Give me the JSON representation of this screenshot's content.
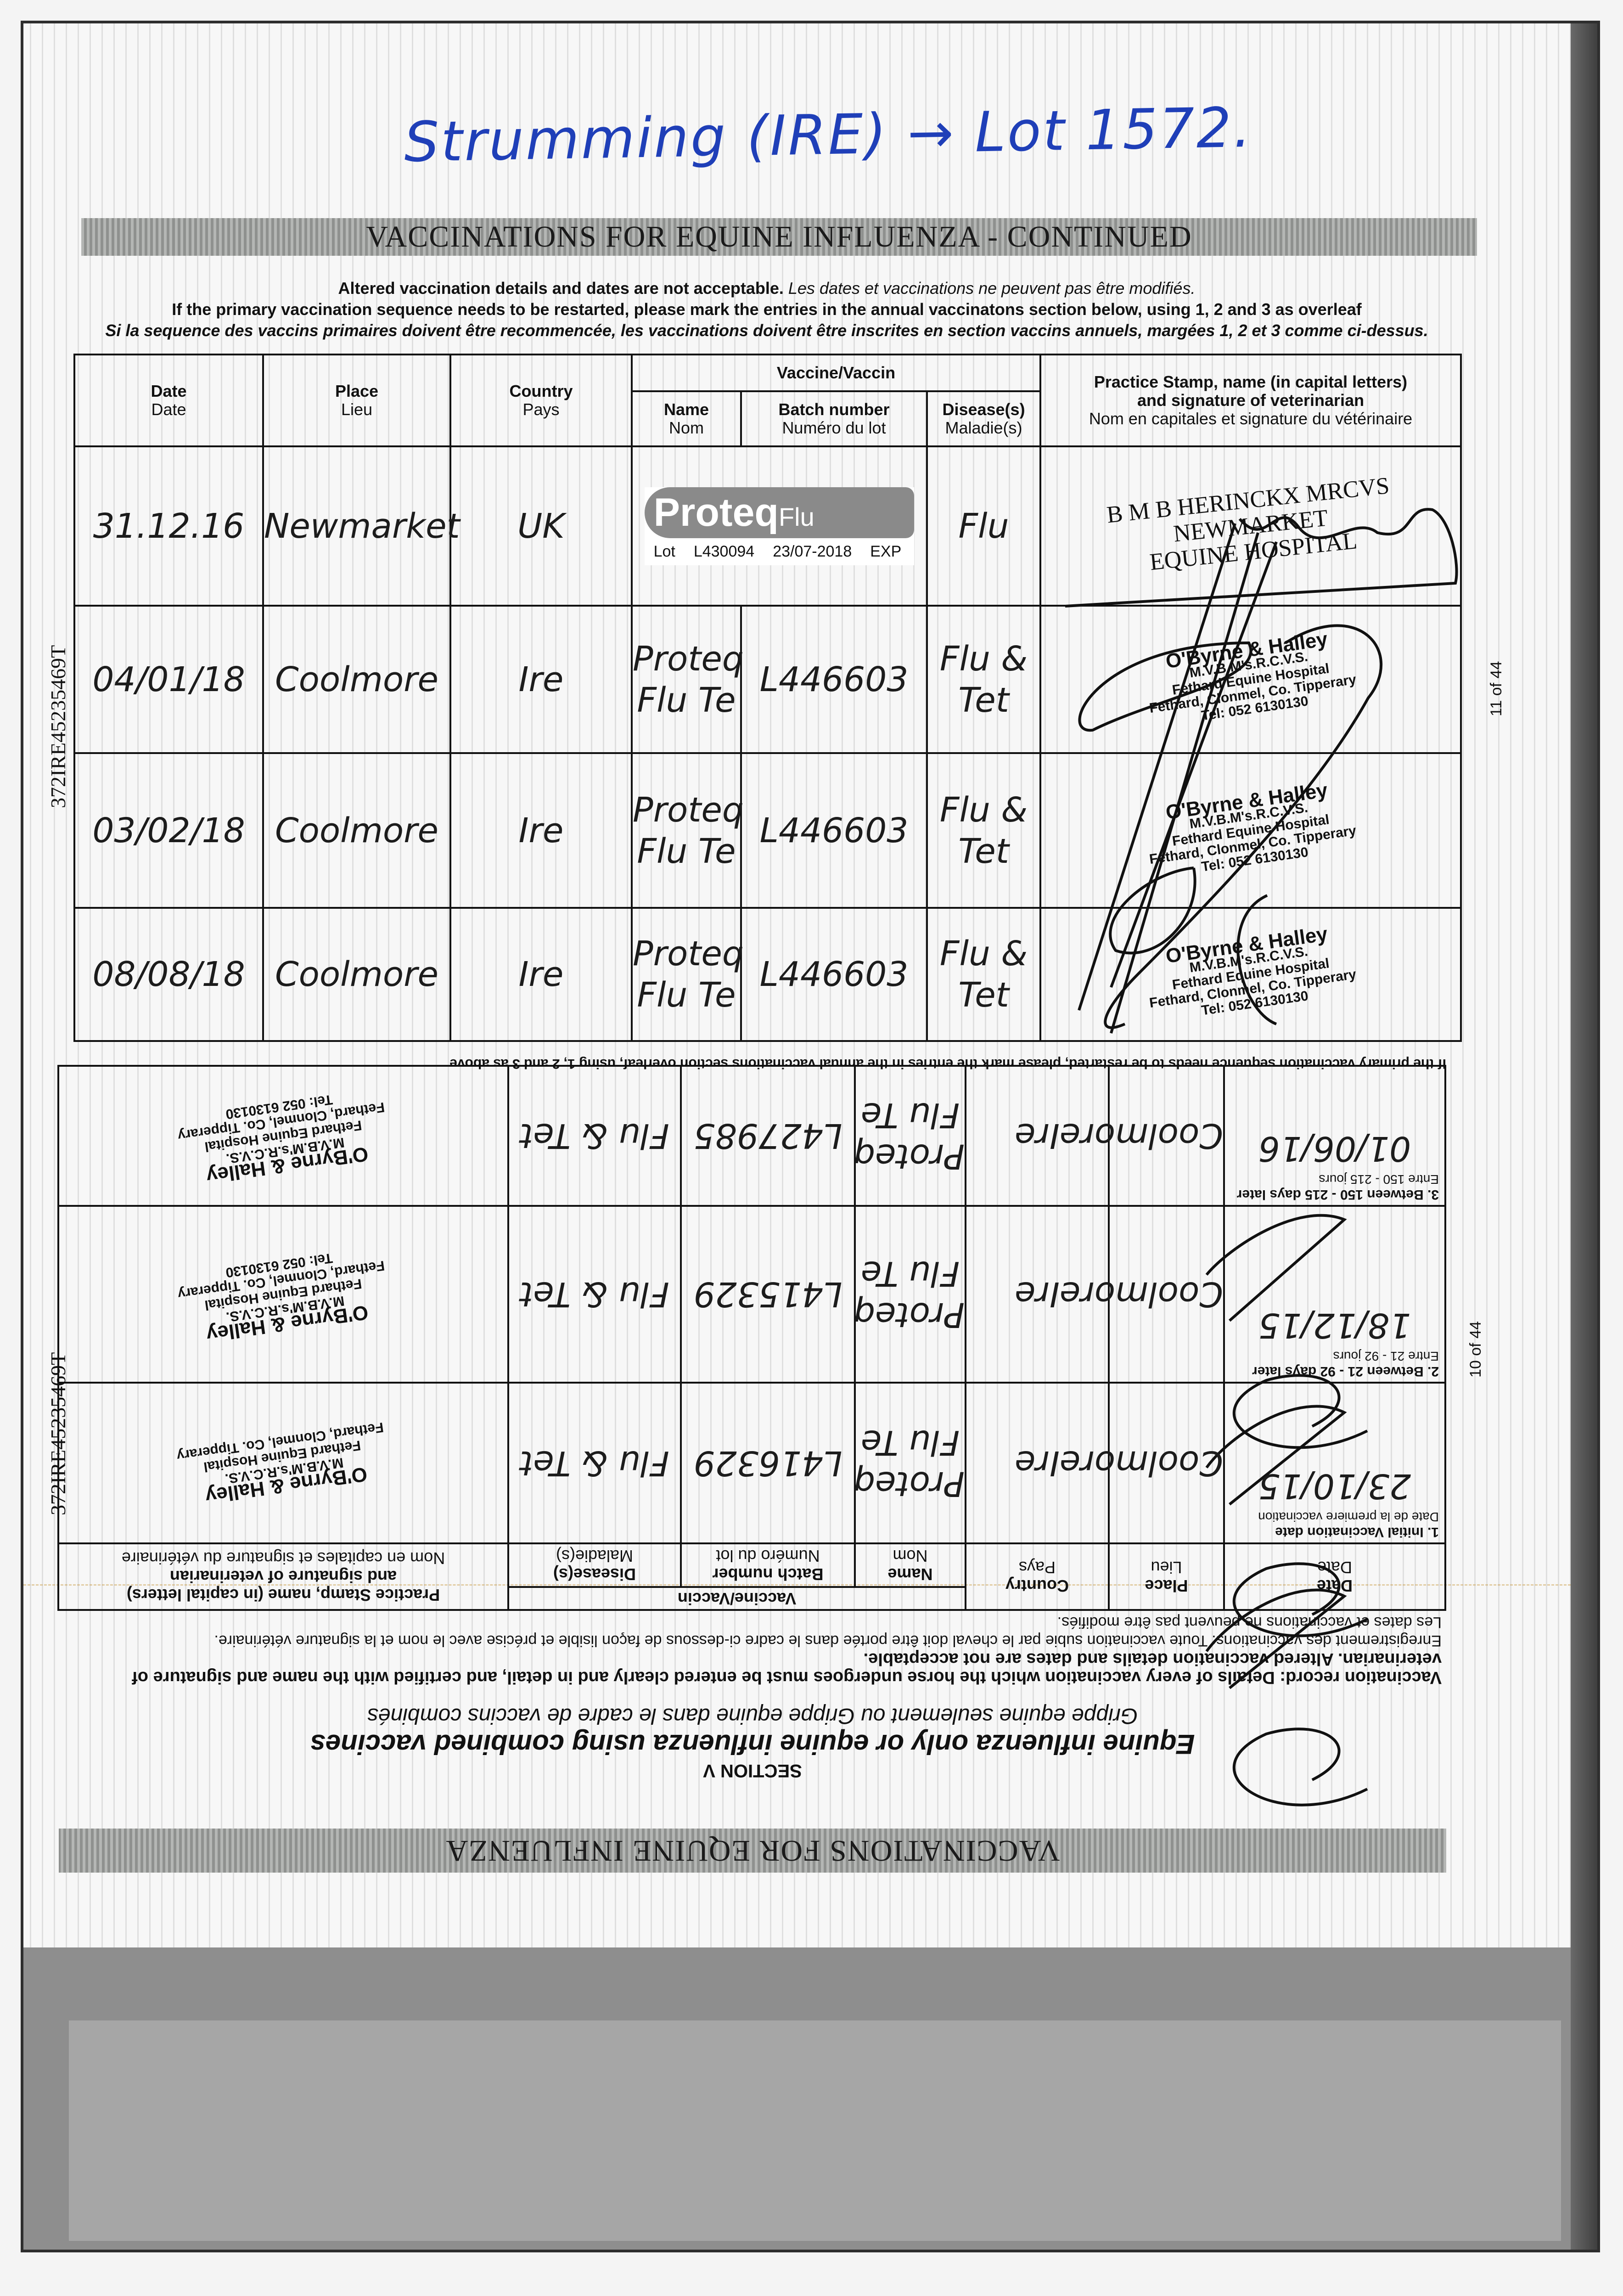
{
  "handwritten_note": "Strumming (IRE) → Lot 1572.",
  "upper": {
    "title": "VACCINATIONS FOR EQUINE INFLUENZA - CONTINUED",
    "note_bold": "Altered vaccination details and dates are not acceptable.",
    "note_italic": "Les dates et vaccinations ne peuvent pas être modifiés.",
    "note2": "If the primary vaccination sequence needs to be restarted, please mark the entries in the annual vaccinatons section below, using 1, 2 and 3 as overleaf",
    "note3": "Si la sequence des vaccins primaires doivent être recommencée, les vaccinations doivent être inscrites en section vaccins annuels, margées 1, 2 et 3 comme ci-dessus.",
    "headers": {
      "date": "Date",
      "date_fr": "Date",
      "place": "Place",
      "place_fr": "Lieu",
      "country": "Country",
      "country_fr": "Pays",
      "vaccine": "Vaccine/Vaccin",
      "name": "Name",
      "name_fr": "Nom",
      "batch": "Batch number",
      "batch_fr": "Numéro du lot",
      "disease": "Disease(s)",
      "disease_fr": "Maladie(s)",
      "stamp": "Practice Stamp, name (in capital letters)",
      "stamp2": "and signature of veterinarian",
      "stamp_fr": "Nom en capitales et signature du vétérinaire"
    },
    "rows": [
      {
        "date": "31.12.16",
        "place": "Newmarket",
        "country": "UK",
        "sticker": {
          "brand": "Proteq",
          "brand2": "Flu",
          "lot_label": "Lot",
          "lot": "L430094",
          "expiry": "23/07-2018",
          "exp_label": "EXP"
        },
        "disease": "Flu",
        "stamp": [
          "B M B HERINCKX MRCVS",
          "NEWMARKET",
          "EQUINE HOSPITAL"
        ]
      },
      {
        "date": "04/01/18",
        "place": "Coolmore",
        "country": "Ire",
        "name": "Proteq Flu Te",
        "batch": "L446603",
        "disease": "Flu & Tet",
        "stamp": [
          "O'Byrne & Halley",
          "M.V.B.M's.R.C.V.S.",
          "Fethard Equine Hospital",
          "Fethard, Clonmel, Co. Tipperary",
          "Tel: 052 6130130"
        ]
      },
      {
        "date": "03/02/18",
        "place": "Coolmore",
        "country": "Ire",
        "name": "Proteq Flu Te",
        "batch": "L446603",
        "disease": "Flu & Tet",
        "stamp": [
          "O'Byrne & Halley",
          "M.V.B.M's.R.C.V.S.",
          "Fethard Equine Hospital",
          "Fethard, Clonmel, Co. Tipperary",
          "Tel: 052 6130130"
        ]
      },
      {
        "date": "08/08/18",
        "place": "Coolmore",
        "country": "Ire",
        "name": "Proteq Flu Te",
        "batch": "L446603",
        "disease": "Flu & Tet",
        "stamp": [
          "O'Byrne & Halley",
          "M.V.B.M's.R.C.V.S.",
          "Fethard Equine Hospital",
          "Fethard, Clonmel, Co. Tipperary",
          "Tel: 052 6130130"
        ]
      }
    ],
    "passport_id": "372IRE45235469T",
    "page": "11 of 44"
  },
  "lower": {
    "title": "VACCINATIONS FOR EQUINE INFLUENZA",
    "section": "SECTION V",
    "subtitle": "Equine influenza only or equine influenza using combined vaccines",
    "subtitle_fr": "Grippe equine seulement ou Grippe equine dans le cadre de vaccins combinés",
    "record_note": "Vaccination record: Details of every vaccination which the horse undergoes must be entered clearly and in detail, and certified with the name and signature of veterinarian. Altered vaccination details and dates are not acceptable.",
    "record_note_fr": "Enregistrement des vaccinations: Toute vaccination subie par le cheval doit être portée dans le cadre ci-dessous de façon lisible et précise avec le nom et la signature vétérinaire.",
    "record_note_fr2": "Les dates et vaccinations ne peuvent pas être modifiés.",
    "headers": {
      "date": "Date",
      "date_fr": "Date",
      "place": "Place",
      "place_fr": "Lieu",
      "country": "Country",
      "country_fr": "Pays",
      "vaccine": "Vaccine/Vaccin",
      "name": "Name",
      "name_fr": "Nom",
      "batch": "Batch number",
      "batch_fr": "Numéro du lot",
      "disease": "Disease(s)",
      "disease_fr": "Maladie(s)",
      "stamp": "Practice Stamp, name (in capital letters)",
      "stamp2": "and signature of veterinarian",
      "stamp_fr": "Nom en capitales et signature du vétérinaire"
    },
    "rows": [
      {
        "label": "1. Initial Vaccination date",
        "label_fr": "Date de la premiere vaccination",
        "date": "23/10/15",
        "place": "Coolmore",
        "country": "Ire",
        "name": "Proteq Flu Te",
        "batch": "L416329",
        "disease": "Flu & Tet",
        "stamp": [
          "O'Byrne & Halley",
          "M.V.B.M's.R.C.V.S.",
          "Fethard Equine Hospital",
          "Fethard, Clonmel, Co. Tipperary"
        ]
      },
      {
        "label": "2. Between 21 - 92 days later",
        "label_fr": "Entre 21 - 92 jours",
        "date": "18/12/15",
        "place": "Coolmore",
        "country": "Ire",
        "name": "Proteq Flu Te",
        "batch": "L415329",
        "disease": "Flu & Tet",
        "stamp": [
          "O'Byrne & Halley",
          "M.V.B.M's.R.C.V.S.",
          "Fethard Equine Hospital",
          "Fethard, Clonmel, Co. Tipperary",
          "Tel: 052 6130130"
        ]
      },
      {
        "label": "3. Between 150 - 215 days later",
        "label_fr": "Entre 150 - 215 jours",
        "date": "01/06/16",
        "place": "Coolmore",
        "country": "Ire",
        "name": "Proteq Flu Te",
        "batch": "L427985",
        "disease": "Flu & Tet",
        "stamp": [
          "O'Byrne & Halley",
          "M.V.B.M's.R.C.V.S.",
          "Fethard Equine Hospital",
          "Fethard, Clonmel, Co. Tipperary",
          "Tel: 052 6130130"
        ]
      }
    ],
    "restart_note": "If the primary vaccination sequence needs to be restarted, please mark the entries in the annual vaccinations section overleaf, using 1, 2 and 3 as above",
    "passport_id": "372IRE45235469T",
    "page": "10 of 44"
  },
  "colors": {
    "handwriting_note": "#1f3fb8",
    "title_band": "#9b9d9b",
    "ink": "#111111"
  }
}
